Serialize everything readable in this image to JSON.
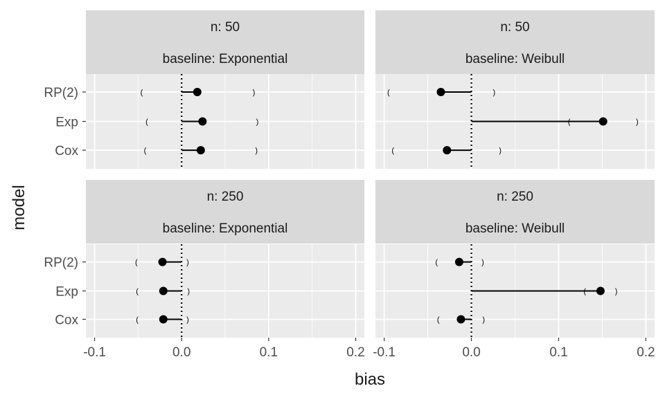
{
  "chart_data": {
    "type": "scatter",
    "xlabel": "bias",
    "ylabel": "model",
    "xlim": [
      -0.11,
      0.21
    ],
    "x_ticks": [
      -0.1,
      0.0,
      0.1,
      0.2
    ],
    "x_tick_labels": [
      "-0.1",
      "0.0",
      "0.1",
      "0.2"
    ],
    "categories": [
      "RP(2)",
      "Exp",
      "Cox"
    ],
    "reference_line": 0.0,
    "grid": true,
    "panels": [
      {
        "strip_top": "n: 50",
        "strip_bottom": "baseline: Exponential",
        "points": [
          {
            "model": "RP(2)",
            "bias": 0.018,
            "lower": -0.046,
            "upper": 0.083
          },
          {
            "model": "Exp",
            "bias": 0.024,
            "lower": -0.04,
            "upper": 0.087
          },
          {
            "model": "Cox",
            "bias": 0.022,
            "lower": -0.042,
            "upper": 0.086
          }
        ]
      },
      {
        "strip_top": "n: 50",
        "strip_bottom": "baseline: Weibull",
        "points": [
          {
            "model": "RP(2)",
            "bias": -0.035,
            "lower": -0.095,
            "upper": 0.026
          },
          {
            "model": "Exp",
            "bias": 0.151,
            "lower": 0.112,
            "upper": 0.19
          },
          {
            "model": "Cox",
            "bias": -0.028,
            "lower": -0.09,
            "upper": 0.033
          }
        ]
      },
      {
        "strip_top": "n: 250",
        "strip_bottom": "baseline: Exponential",
        "points": [
          {
            "model": "RP(2)",
            "bias": -0.022,
            "lower": -0.052,
            "upper": 0.007
          },
          {
            "model": "Exp",
            "bias": -0.021,
            "lower": -0.051,
            "upper": 0.008
          },
          {
            "model": "Cox",
            "bias": -0.021,
            "lower": -0.051,
            "upper": 0.007
          }
        ]
      },
      {
        "strip_top": "n: 250",
        "strip_bottom": "baseline: Weibull",
        "points": [
          {
            "model": "RP(2)",
            "bias": -0.014,
            "lower": -0.04,
            "upper": 0.013
          },
          {
            "model": "Exp",
            "bias": 0.148,
            "lower": 0.13,
            "upper": 0.166
          },
          {
            "model": "Cox",
            "bias": -0.012,
            "lower": -0.038,
            "upper": 0.014
          }
        ]
      }
    ]
  },
  "colors": {
    "panel_bg": "#ebebeb",
    "strip_bg": "#d9d9d9",
    "grid": "#ffffff",
    "text": "#1a1a1a",
    "axis_text": "#4d4d4d",
    "mark": "#000000"
  }
}
